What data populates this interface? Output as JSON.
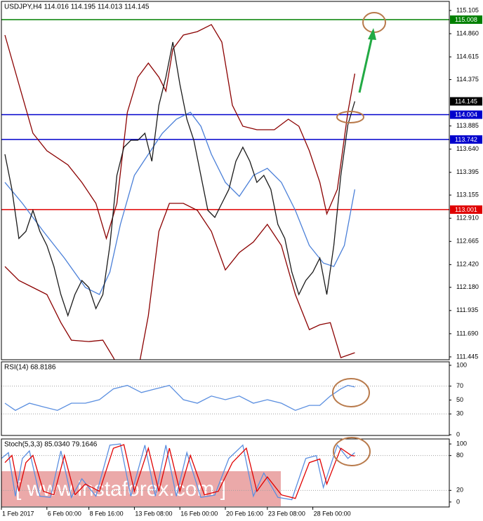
{
  "chart_data": [
    {
      "type": "line",
      "title": "USDJPY,H4  114.016 114.195 114.013 114.145",
      "xlim": [
        0,
        128
      ],
      "ylim": [
        111.415,
        115.201
      ],
      "yticks": [
        115.105,
        {
          "value": 114.86,
          "label": "114.860"
        },
        114.615,
        114.375,
        113.885,
        {
          "value": 113.64,
          "label": "113.640"
        },
        113.395,
        113.155,
        {
          "value": 112.91,
          "label": "112.910"
        },
        112.665,
        {
          "value": 112.42,
          "label": "112.420"
        },
        {
          "value": 112.18,
          "label": "112.180"
        },
        111.935,
        {
          "value": 111.69,
          "label": "111.690"
        },
        111.445
      ],
      "levels": [
        {
          "value": 115.008,
          "color": "#008000",
          "line": true,
          "label": true
        },
        {
          "value": 114.145,
          "color": "#000000",
          "line": false,
          "label": true
        },
        {
          "value": 114.004,
          "color": "#0000cc",
          "line": true,
          "label": true
        },
        {
          "value": 113.742,
          "color": "#0000cc",
          "line": true,
          "label": true
        },
        {
          "value": 113.001,
          "color": "#e00000",
          "line": true,
          "label": true
        }
      ],
      "series": [
        {
          "color": "#8b0000",
          "x": [
            1,
            5,
            9,
            13,
            19,
            23,
            27,
            30,
            33,
            36,
            39,
            42,
            45,
            47,
            49,
            52,
            56,
            60,
            63,
            66,
            69,
            73,
            78,
            82,
            85,
            88,
            91,
            93,
            96,
            99,
            101
          ],
          "values": [
            114.845,
            114.327,
            113.808,
            113.623,
            113.474,
            113.289,
            113.067,
            112.696,
            113.067,
            114.03,
            114.401,
            114.549,
            114.401,
            114.253,
            114.697,
            114.845,
            114.882,
            114.956,
            114.771,
            114.104,
            113.882,
            113.845,
            113.845,
            113.956,
            113.882,
            113.623,
            113.289,
            112.956,
            113.215,
            114.03,
            114.438
          ]
        },
        {
          "color": "#8b0000",
          "x": [
            1,
            5,
            9,
            13,
            17,
            20,
            25,
            29,
            32,
            35,
            39,
            42,
            45,
            48,
            52,
            56,
            60,
            64,
            68,
            72,
            76,
            80,
            84,
            88,
            91,
            94,
            97,
            101
          ],
          "values": [
            112.4,
            112.252,
            112.178,
            112.104,
            111.807,
            111.622,
            111.607,
            111.622,
            111.437,
            111.214,
            111.289,
            111.881,
            112.771,
            113.067,
            113.067,
            112.993,
            112.771,
            112.363,
            112.548,
            112.659,
            112.845,
            112.622,
            112.104,
            111.733,
            111.785,
            111.807,
            111.437,
            111.489
          ]
        },
        {
          "color": "#4a7fd8",
          "x": [
            1,
            6,
            12,
            18,
            24,
            28,
            31,
            34,
            38,
            42,
            46,
            50,
            54,
            57,
            60,
            64,
            68,
            72,
            76,
            80,
            84,
            88,
            92,
            95,
            98,
            101
          ],
          "values": [
            113.289,
            113.067,
            112.771,
            112.489,
            112.178,
            112.104,
            112.341,
            112.845,
            113.363,
            113.586,
            113.808,
            113.956,
            114.03,
            113.882,
            113.586,
            113.289,
            113.141,
            113.363,
            113.437,
            113.289,
            112.993,
            112.622,
            112.437,
            112.4,
            112.622,
            113.215
          ]
        },
        {
          "color": "#1a1a1a",
          "x": [
            1,
            3,
            5,
            7,
            9,
            11,
            13,
            15,
            17,
            19,
            21,
            23,
            25,
            27,
            29,
            31,
            33,
            35,
            37,
            39,
            41,
            43,
            45,
            47,
            49,
            51,
            53,
            55,
            57,
            59,
            61,
            63,
            65,
            67,
            69,
            71,
            73,
            75,
            77,
            79,
            81,
            83,
            85,
            87,
            89,
            91,
            93,
            95,
            97,
            99,
            101
          ],
          "values": [
            113.586,
            113.215,
            112.696,
            112.771,
            112.993,
            112.771,
            112.622,
            112.4,
            112.104,
            111.881,
            112.104,
            112.252,
            112.178,
            111.955,
            112.104,
            112.622,
            113.363,
            113.66,
            113.734,
            113.734,
            113.808,
            113.512,
            114.104,
            114.401,
            114.771,
            114.327,
            113.956,
            113.734,
            113.363,
            112.993,
            112.919,
            113.067,
            113.215,
            113.512,
            113.66,
            113.512,
            113.289,
            113.363,
            113.215,
            112.845,
            112.696,
            112.341,
            112.104,
            112.252,
            112.341,
            112.489,
            112.104,
            112.622,
            113.363,
            113.897,
            114.145
          ]
        }
      ]
    },
    {
      "type": "line",
      "title": "RSI(14) 68.8186",
      "xlim": [
        0,
        128
      ],
      "ylim": [
        -1,
        105
      ],
      "yticks": [
        100,
        70,
        50,
        30,
        0
      ],
      "levels": [
        {
          "value": 70,
          "color": "#a0a0a0",
          "line": true,
          "label": false
        },
        {
          "value": 30,
          "color": "#a0a0a0",
          "line": true,
          "label": false
        }
      ],
      "series": [
        {
          "color": "#5b8fe0",
          "x": [
            1,
            4,
            8,
            12,
            16,
            20,
            24,
            28,
            32,
            36,
            40,
            44,
            48,
            52,
            56,
            60,
            64,
            68,
            72,
            76,
            80,
            84,
            88,
            91,
            94,
            97,
            99,
            101
          ],
          "values": [
            45.4,
            35.1,
            45.4,
            40.2,
            35.1,
            45.4,
            45.4,
            50.5,
            66,
            71.1,
            60.8,
            66,
            71.1,
            50.5,
            45.4,
            55.7,
            50.5,
            55.7,
            45.4,
            50.5,
            45.4,
            35.1,
            42.3,
            42.3,
            55.7,
            66,
            71.1,
            68.8
          ]
        }
      ]
    },
    {
      "type": "line",
      "title": "Stoch(5,3,3) 85.0340 79.1646",
      "xlim": [
        0,
        128
      ],
      "ylim": [
        -8.6,
        108.6
      ],
      "yticks": [
        100,
        80,
        20,
        0
      ],
      "levels": [
        {
          "value": 80,
          "color": "#a0a0a0",
          "line": true,
          "label": false
        },
        {
          "value": 20,
          "color": "#a0a0a0",
          "line": true,
          "label": false
        }
      ],
      "xticks": [
        {
          "value": 0,
          "label": "1 Feb 2017"
        },
        {
          "value": 13,
          "label": "6 Feb 00:00"
        },
        {
          "value": 25,
          "label": "8 Feb 16:00"
        },
        {
          "value": 38,
          "label": "13 Feb 08:00"
        },
        {
          "value": 51,
          "label": "16 Feb 00:00"
        },
        {
          "value": 64,
          "label": "20 Feb 16:00"
        },
        {
          "value": 76,
          "label": "23 Feb 08:00"
        },
        {
          "value": 89,
          "label": "28 Feb 00:00"
        }
      ],
      "watermark": "[ www.instaforex.com ]",
      "series": [
        {
          "color": "#5b8fe0",
          "x": [
            0,
            2,
            4,
            6,
            8,
            11,
            14,
            17,
            20,
            23,
            27,
            31,
            34,
            37,
            41,
            44,
            47,
            50,
            53,
            57,
            61,
            65,
            69,
            72,
            75,
            79,
            83,
            87,
            90,
            92,
            96,
            99,
            101
          ],
          "values": [
            75,
            85,
            10,
            75,
            88,
            10,
            8,
            88,
            8,
            40,
            10,
            98,
            100,
            10,
            98,
            10,
            98,
            10,
            85,
            8,
            12,
            75,
            98,
            10,
            50,
            8,
            4,
            75,
            80,
            25,
            98,
            75,
            85
          ]
        },
        {
          "color": "#e00000",
          "x": [
            1,
            3,
            5,
            7,
            9,
            12,
            15,
            18,
            21,
            24,
            28,
            32,
            35,
            38,
            42,
            45,
            48,
            51,
            54,
            58,
            62,
            66,
            70,
            73,
            76,
            80,
            84,
            88,
            91,
            93,
            97,
            100,
            101
          ],
          "values": [
            67.9,
            80.2,
            18.5,
            67.9,
            80.2,
            18.5,
            12.3,
            80.2,
            12.3,
            30.9,
            18.5,
            92.6,
            98.8,
            18.5,
            92.6,
            18.5,
            92.6,
            18.5,
            80.2,
            12.3,
            18.5,
            67.9,
            92.6,
            18.5,
            43.2,
            12.3,
            6.2,
            67.9,
            74.1,
            30.9,
            92.6,
            80.2,
            79.2
          ]
        }
      ]
    }
  ]
}
